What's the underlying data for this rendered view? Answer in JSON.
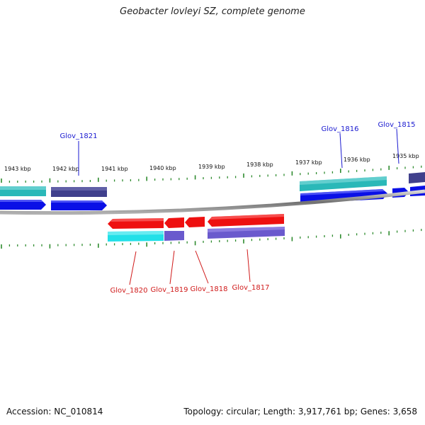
{
  "title": "Geobacter lovleyi SZ, complete genome",
  "accession": "Accession: NC_010814",
  "summary": "Topology: circular; Length: 3,917,761 bp; Genes: 3,658",
  "colors": {
    "backbone": "#8c8c8c",
    "ticks": "#2e8b2e",
    "forward_cds": "#0a10e6",
    "forward_gene": "#2ab8b8",
    "forward_gene_dark": "#40408c",
    "reverse_cds": "#ee1010",
    "reverse_gene_cyan": "#22e0e8",
    "reverse_gene_purple": "#6a5acd",
    "forward_label": "#1a1ad0",
    "reverse_label": "#d01a1a"
  },
  "scale_labels": [
    "1943 kbp",
    "1942 kbp",
    "1941 kbp",
    "1940 kbp",
    "1939 kbp",
    "1938 kbp",
    "1937 kbp",
    "1936 kbp",
    "1935 kbp"
  ],
  "forward_gene_labels": [
    "Glov_1821",
    "Glov_1816",
    "Glov_1815"
  ],
  "reverse_gene_labels": [
    "Glov_1820",
    "Glov_1819",
    "Glov_1818",
    "Glov_1817"
  ]
}
